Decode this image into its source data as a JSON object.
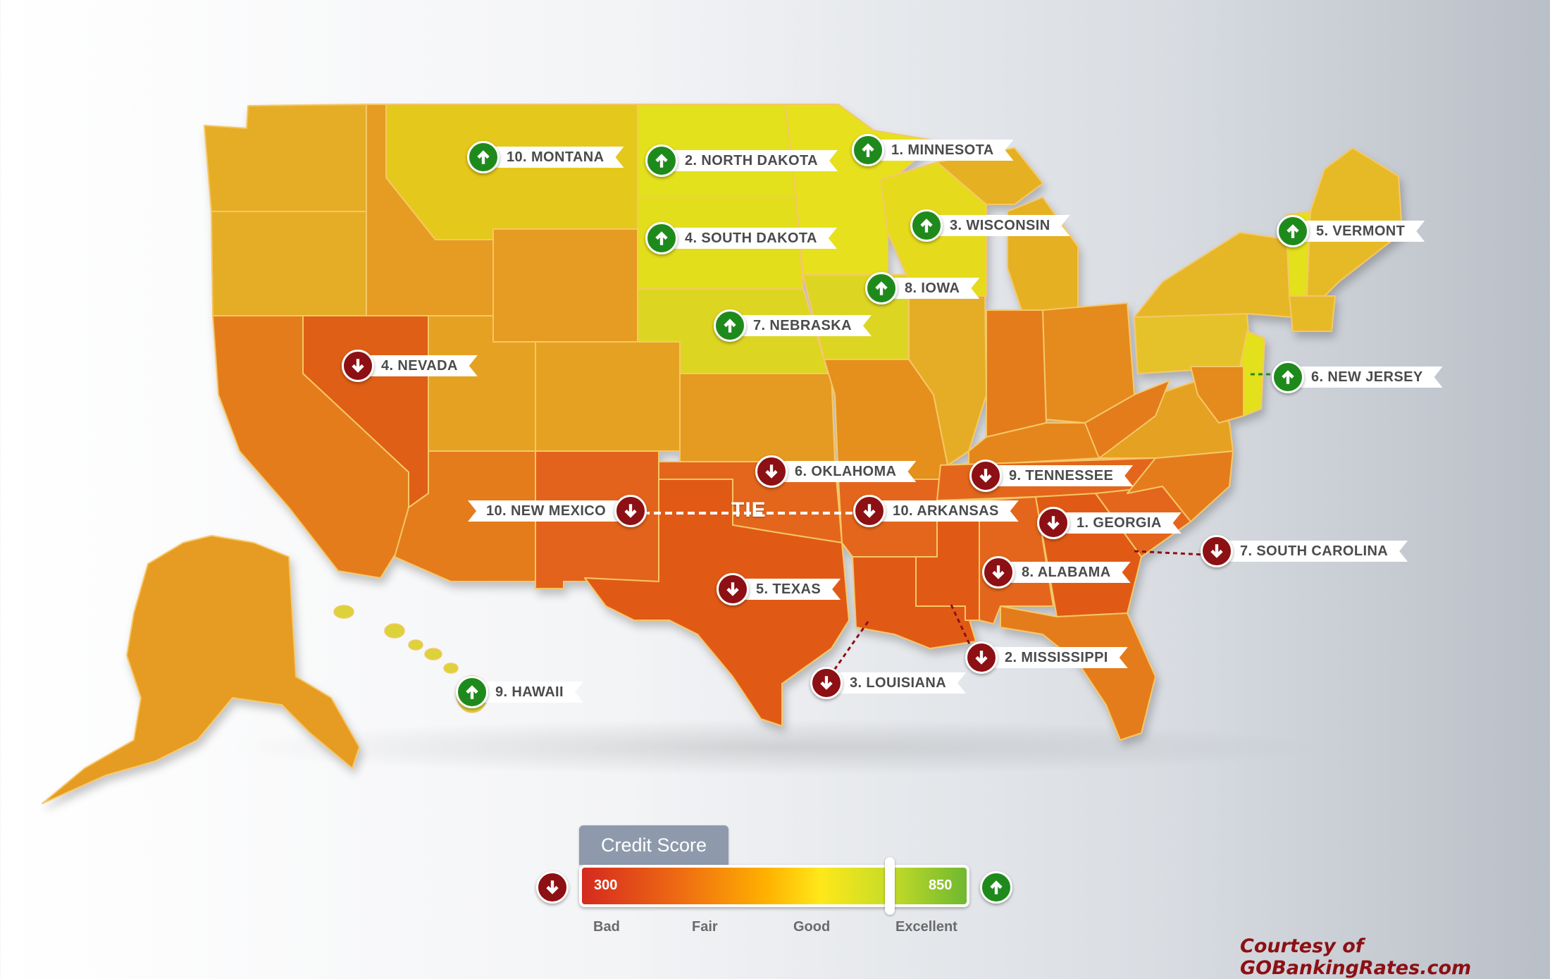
{
  "rankings": [
    {
      "label": "1. MINNESOTA",
      "trend": "up"
    },
    {
      "label": "2. NORTH DAKOTA",
      "trend": "up"
    },
    {
      "label": "3. WISCONSIN",
      "trend": "up"
    },
    {
      "label": "4. SOUTH DAKOTA",
      "trend": "up"
    },
    {
      "label": "5. VERMONT",
      "trend": "up"
    },
    {
      "label": "6. NEW JERSEY",
      "trend": "up"
    },
    {
      "label": "7. NEBRASKA",
      "trend": "up"
    },
    {
      "label": "8. IOWA",
      "trend": "up"
    },
    {
      "label": "9. HAWAII",
      "trend": "up"
    },
    {
      "label": "10. MONTANA",
      "trend": "up"
    },
    {
      "label": "1. GEORGIA",
      "trend": "down"
    },
    {
      "label": "2. MISSISSIPPI",
      "trend": "down"
    },
    {
      "label": "3. LOUISIANA",
      "trend": "down"
    },
    {
      "label": "4. NEVADA",
      "trend": "down"
    },
    {
      "label": "5. TEXAS",
      "trend": "down"
    },
    {
      "label": "6. OKLAHOMA",
      "trend": "down"
    },
    {
      "label": "7. SOUTH CAROLINA",
      "trend": "down"
    },
    {
      "label": "8. ALABAMA",
      "trend": "down"
    },
    {
      "label": "9. TENNESSEE",
      "trend": "down"
    },
    {
      "label": "10. NEW MEXICO",
      "trend": "down"
    },
    {
      "label": "10. ARKANSAS",
      "trend": "down"
    }
  ],
  "tie_label": "TIE",
  "legend": {
    "title": "Credit Score",
    "min": "300",
    "max": "850",
    "tiers": [
      "Bad",
      "Fair",
      "Good",
      "Excellent"
    ],
    "marker_fraction": 0.8
  },
  "colors": {
    "up": "#1f8a1c",
    "down": "#8c1014",
    "best": "#e4de1f",
    "worst": "#e05a17"
  },
  "credit": "Courtesy of GOBankingRates.com"
}
